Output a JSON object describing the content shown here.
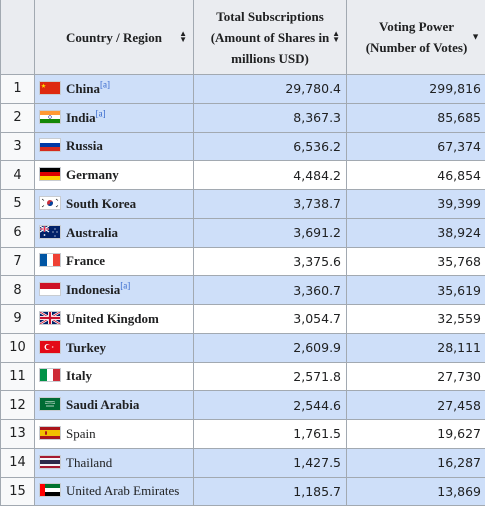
{
  "header": {
    "country": "Country / Region",
    "subs": [
      "Total Subscriptions",
      "(Amount of Shares in",
      "millions USD)"
    ],
    "votes": [
      "Voting Power",
      "(Number of Votes)"
    ]
  },
  "note_label": "[a]",
  "rows": [
    {
      "rank": "1",
      "country": "China",
      "note": true,
      "subs": "29,780.4",
      "votes": "299,816",
      "flag": "china-flag-icon",
      "bold": true,
      "hl": true
    },
    {
      "rank": "2",
      "country": "India",
      "note": true,
      "subs": "8,367.3",
      "votes": "85,685",
      "flag": "india-flag-icon",
      "bold": true,
      "hl": true
    },
    {
      "rank": "3",
      "country": "Russia",
      "note": false,
      "subs": "6,536.2",
      "votes": "67,374",
      "flag": "russia-flag-icon",
      "bold": true,
      "hl": true
    },
    {
      "rank": "4",
      "country": "Germany",
      "note": false,
      "subs": "4,484.2",
      "votes": "46,854",
      "flag": "germany-flag-icon",
      "bold": true,
      "hl": false
    },
    {
      "rank": "5",
      "country": "South Korea",
      "note": false,
      "subs": "3,738.7",
      "votes": "39,399",
      "flag": "south-korea-flag-icon",
      "bold": true,
      "hl": true
    },
    {
      "rank": "6",
      "country": "Australia",
      "note": false,
      "subs": "3,691.2",
      "votes": "38,924",
      "flag": "australia-flag-icon",
      "bold": true,
      "hl": true
    },
    {
      "rank": "7",
      "country": "France",
      "note": false,
      "subs": "3,375.6",
      "votes": "35,768",
      "flag": "france-flag-icon",
      "bold": true,
      "hl": false
    },
    {
      "rank": "8",
      "country": "Indonesia",
      "note": true,
      "subs": "3,360.7",
      "votes": "35,619",
      "flag": "indonesia-flag-icon",
      "bold": true,
      "hl": true
    },
    {
      "rank": "9",
      "country": "United Kingdom",
      "note": false,
      "subs": "3,054.7",
      "votes": "32,559",
      "flag": "uk-flag-icon",
      "bold": true,
      "hl": false
    },
    {
      "rank": "10",
      "country": "Turkey",
      "note": false,
      "subs": "2,609.9",
      "votes": "28,111",
      "flag": "turkey-flag-icon",
      "bold": true,
      "hl": true
    },
    {
      "rank": "11",
      "country": "Italy",
      "note": false,
      "subs": "2,571.8",
      "votes": "27,730",
      "flag": "italy-flag-icon",
      "bold": true,
      "hl": false
    },
    {
      "rank": "12",
      "country": "Saudi Arabia",
      "note": false,
      "subs": "2,544.6",
      "votes": "27,458",
      "flag": "saudi-arabia-flag-icon",
      "bold": true,
      "hl": true
    },
    {
      "rank": "13",
      "country": "Spain",
      "note": false,
      "subs": "1,761.5",
      "votes": "19,627",
      "flag": "spain-flag-icon",
      "bold": false,
      "hl": false
    },
    {
      "rank": "14",
      "country": "Thailand",
      "note": false,
      "subs": "1,427.5",
      "votes": "16,287",
      "flag": "thailand-flag-icon",
      "bold": false,
      "hl": true
    },
    {
      "rank": "15",
      "country": "United Arab Emirates",
      "note": false,
      "subs": "1,185.7",
      "votes": "13,869",
      "flag": "uae-flag-icon",
      "bold": false,
      "hl": true
    }
  ]
}
